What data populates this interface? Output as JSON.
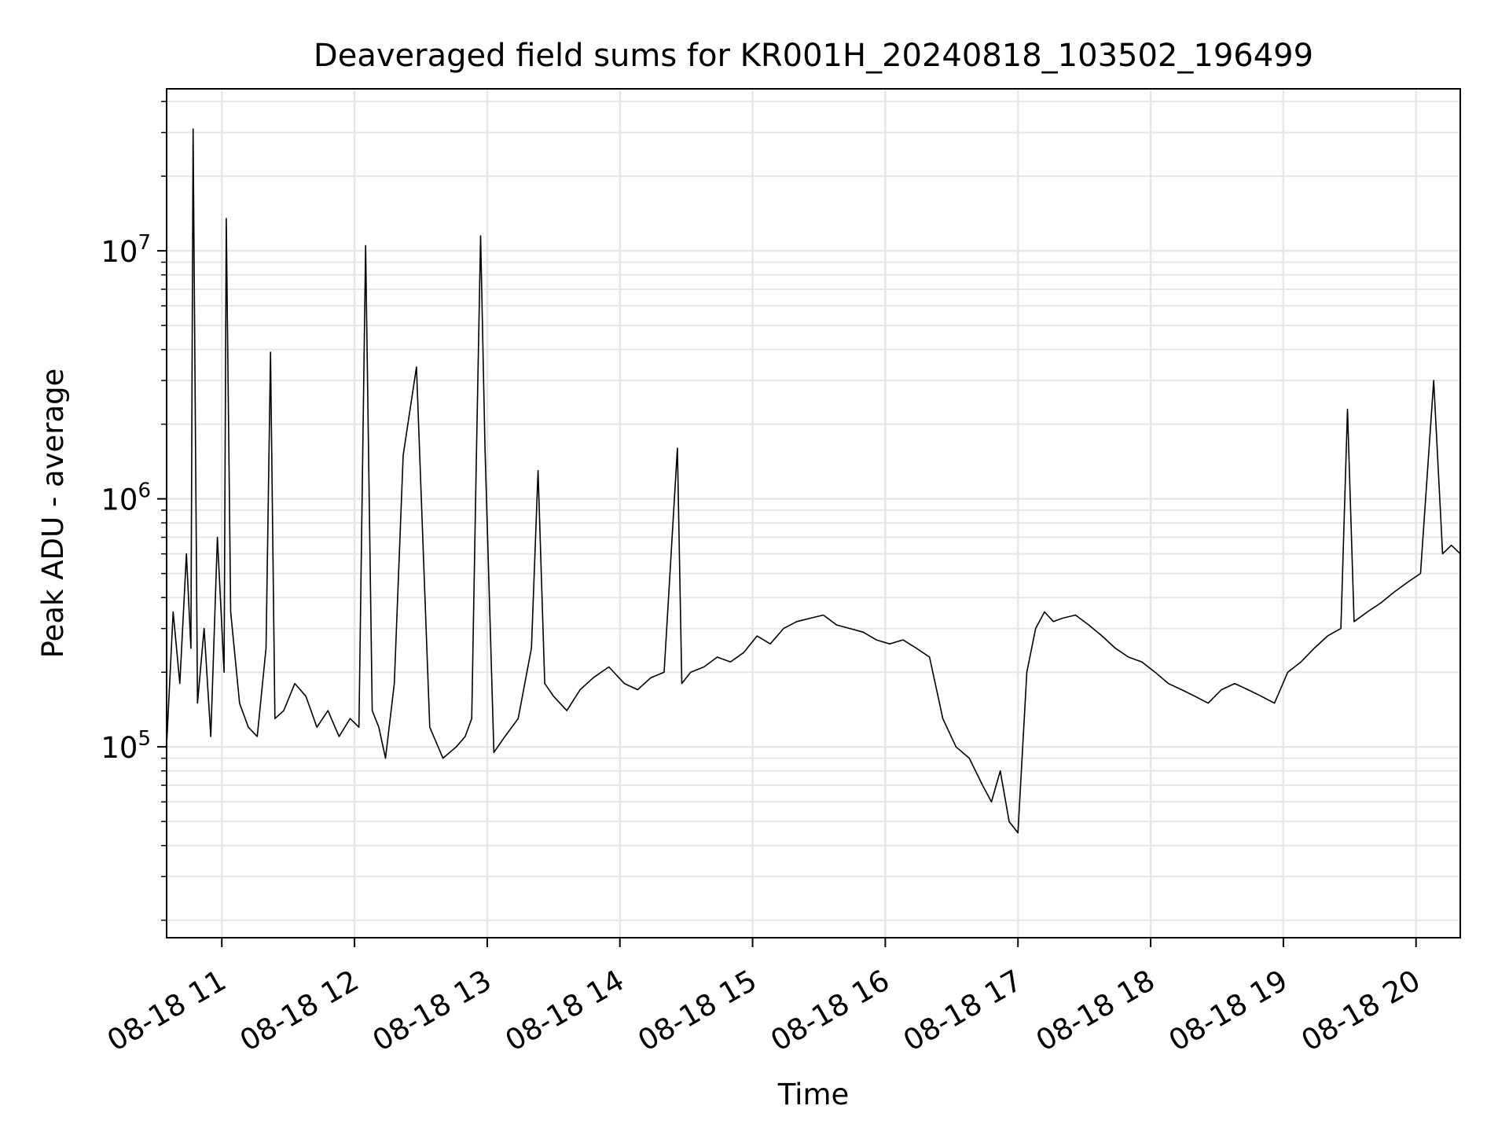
{
  "chart_data": {
    "type": "line",
    "title": "Deaveraged field sums for KR001H_20240818_103502_196499",
    "xlabel": "Time",
    "ylabel": "Peak ADU - average",
    "x_scale": "time",
    "y_scale": "log",
    "xlim": [
      "2024-08-18T10:35:02",
      "2024-08-18T20:20:00"
    ],
    "ylim": [
      17000,
      45000000
    ],
    "x_tick_labels": [
      "08-18 11",
      "08-18 12",
      "08-18 13",
      "08-18 14",
      "08-18 15",
      "08-18 16",
      "08-18 17",
      "08-18 18",
      "08-18 19",
      "08-18 20"
    ],
    "y_tick_labels": [
      {
        "value": 100000,
        "base": "10",
        "exp": "5"
      },
      {
        "value": 1000000,
        "base": "10",
        "exp": "6"
      },
      {
        "value": 10000000,
        "base": "10",
        "exp": "7"
      }
    ],
    "grid": true,
    "line_color": "#000000",
    "grid_color": "#e6e6e6",
    "series": [
      {
        "x": [
          "08-18 10:35",
          "08-18 10:38",
          "08-18 10:41",
          "08-18 10:44",
          "08-18 10:46",
          "08-18 10:47",
          "08-18 10:49",
          "08-18 10:52",
          "08-18 10:55",
          "08-18 10:58",
          "08-18 11:01",
          "08-18 11:02",
          "08-18 11:04",
          "08-18 11:08",
          "08-18 11:12",
          "08-18 11:16",
          "08-18 11:20",
          "08-18 11:22",
          "08-18 11:24",
          "08-18 11:28",
          "08-18 11:33",
          "08-18 11:38",
          "08-18 11:43",
          "08-18 11:48",
          "08-18 11:53",
          "08-18 11:58",
          "08-18 12:02",
          "08-18 12:05",
          "08-18 12:08",
          "08-18 12:11",
          "08-18 12:14",
          "08-18 12:18",
          "08-18 12:22",
          "08-18 12:28",
          "08-18 12:34",
          "08-18 12:40",
          "08-18 12:46",
          "08-18 12:50",
          "08-18 12:53",
          "08-18 12:55",
          "08-18 12:57",
          "08-18 12:59",
          "08-18 13:03",
          "08-18 13:08",
          "08-18 13:14",
          "08-18 13:20",
          "08-18 13:23",
          "08-18 13:26",
          "08-18 13:30",
          "08-18 13:36",
          "08-18 13:42",
          "08-18 13:48",
          "08-18 13:55",
          "08-18 14:02",
          "08-18 14:08",
          "08-18 14:14",
          "08-18 14:20",
          "08-18 14:26",
          "08-18 14:28",
          "08-18 14:32",
          "08-18 14:38",
          "08-18 14:44",
          "08-18 14:50",
          "08-18 14:56",
          "08-18 15:02",
          "08-18 15:08",
          "08-18 15:14",
          "08-18 15:20",
          "08-18 15:26",
          "08-18 15:32",
          "08-18 15:38",
          "08-18 15:44",
          "08-18 15:50",
          "08-18 15:56",
          "08-18 16:02",
          "08-18 16:08",
          "08-18 16:14",
          "08-18 16:20",
          "08-18 16:26",
          "08-18 16:32",
          "08-18 16:38",
          "08-18 16:44",
          "08-18 16:48",
          "08-18 16:52",
          "08-18 16:56",
          "08-18 17:00",
          "08-18 17:04",
          "08-18 17:08",
          "08-18 17:12",
          "08-18 17:16",
          "08-18 17:20",
          "08-18 17:26",
          "08-18 17:32",
          "08-18 17:38",
          "08-18 17:44",
          "08-18 17:50",
          "08-18 17:56",
          "08-18 18:02",
          "08-18 18:08",
          "08-18 18:14",
          "08-18 18:20",
          "08-18 18:26",
          "08-18 18:32",
          "08-18 18:38",
          "08-18 18:44",
          "08-18 18:50",
          "08-18 18:56",
          "08-18 19:02",
          "08-18 19:08",
          "08-18 19:14",
          "08-18 19:20",
          "08-18 19:26",
          "08-18 19:29",
          "08-18 19:32",
          "08-18 19:38",
          "08-18 19:44",
          "08-18 19:50",
          "08-18 19:56",
          "08-18 20:02",
          "08-18 20:08",
          "08-18 20:12",
          "08-18 20:16",
          "08-18 20:20"
        ],
        "y": [
          100000,
          350000,
          180000,
          600000,
          250000,
          31000000,
          150000,
          300000,
          110000,
          700000,
          200000,
          13500000,
          350000,
          150000,
          120000,
          110000,
          250000,
          3900000,
          130000,
          140000,
          180000,
          160000,
          120000,
          140000,
          110000,
          130000,
          120000,
          10500000,
          140000,
          120000,
          90000,
          180000,
          1500000,
          3400000,
          120000,
          90000,
          100000,
          110000,
          130000,
          1300000,
          11500000,
          1600000,
          95000,
          110000,
          130000,
          250000,
          1300000,
          180000,
          160000,
          140000,
          170000,
          190000,
          210000,
          180000,
          170000,
          190000,
          200000,
          1600000,
          180000,
          200000,
          210000,
          230000,
          220000,
          240000,
          280000,
          260000,
          300000,
          320000,
          330000,
          340000,
          310000,
          300000,
          290000,
          270000,
          260000,
          270000,
          250000,
          230000,
          130000,
          100000,
          90000,
          70000,
          60000,
          80000,
          50000,
          45000,
          200000,
          300000,
          350000,
          320000,
          330000,
          340000,
          310000,
          280000,
          250000,
          230000,
          220000,
          200000,
          180000,
          170000,
          160000,
          150000,
          170000,
          180000,
          170000,
          160000,
          150000,
          200000,
          220000,
          250000,
          280000,
          300000,
          2300000,
          320000,
          350000,
          380000,
          420000,
          460000,
          500000,
          3000000,
          600000,
          650000,
          600000
        ]
      }
    ]
  }
}
